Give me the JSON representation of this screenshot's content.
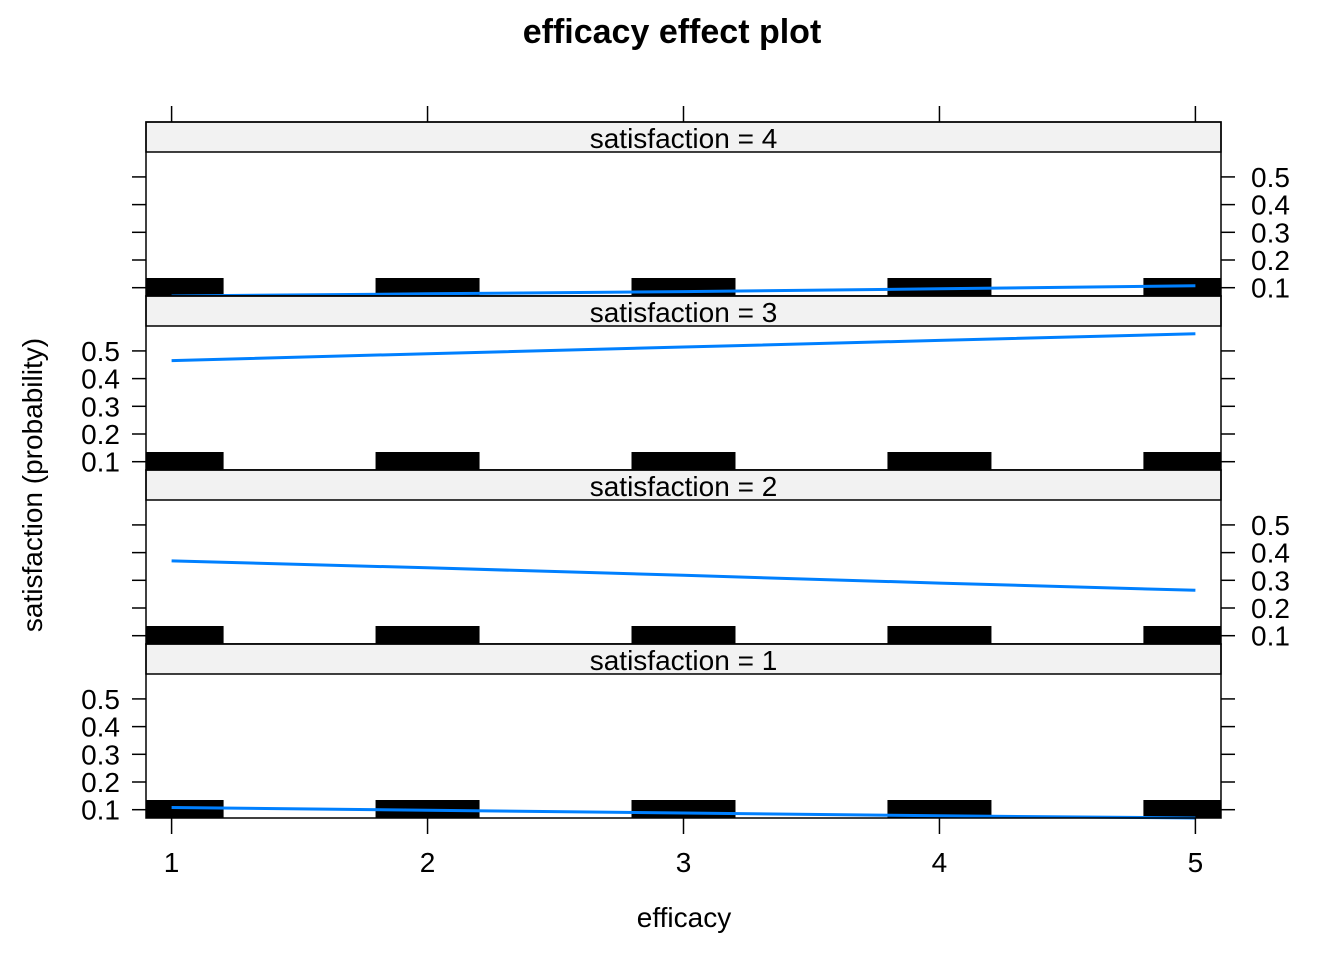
{
  "chart_data": {
    "type": "line",
    "title": "efficacy effect plot",
    "xlabel": "efficacy",
    "ylabel": "satisfaction (probability)",
    "x": [
      1,
      2,
      3,
      4,
      5
    ],
    "x_ticks": [
      "1",
      "2",
      "3",
      "4",
      "5"
    ],
    "y_ticks": [
      "0.1",
      "0.2",
      "0.3",
      "0.4",
      "0.5"
    ],
    "ylim": [
      0.07,
      0.59
    ],
    "xlim": [
      0.9,
      5.1
    ],
    "line_color": "#0080ff",
    "rug_color": "#000000",
    "strip_color": "#f2f2f2",
    "panels": [
      {
        "strip": "satisfaction = 4",
        "level": "4",
        "values": [
          0.07,
          0.078,
          0.086,
          0.096,
          0.107
        ]
      },
      {
        "strip": "satisfaction = 3",
        "level": "3",
        "values": [
          0.465,
          0.49,
          0.514,
          0.538,
          0.562
        ]
      },
      {
        "strip": "satisfaction = 2",
        "level": "2",
        "values": [
          0.37,
          0.345,
          0.318,
          0.29,
          0.264
        ]
      },
      {
        "strip": "satisfaction = 1",
        "level": "1",
        "values": [
          0.108,
          0.098,
          0.088,
          0.078,
          0.07
        ]
      }
    ]
  }
}
